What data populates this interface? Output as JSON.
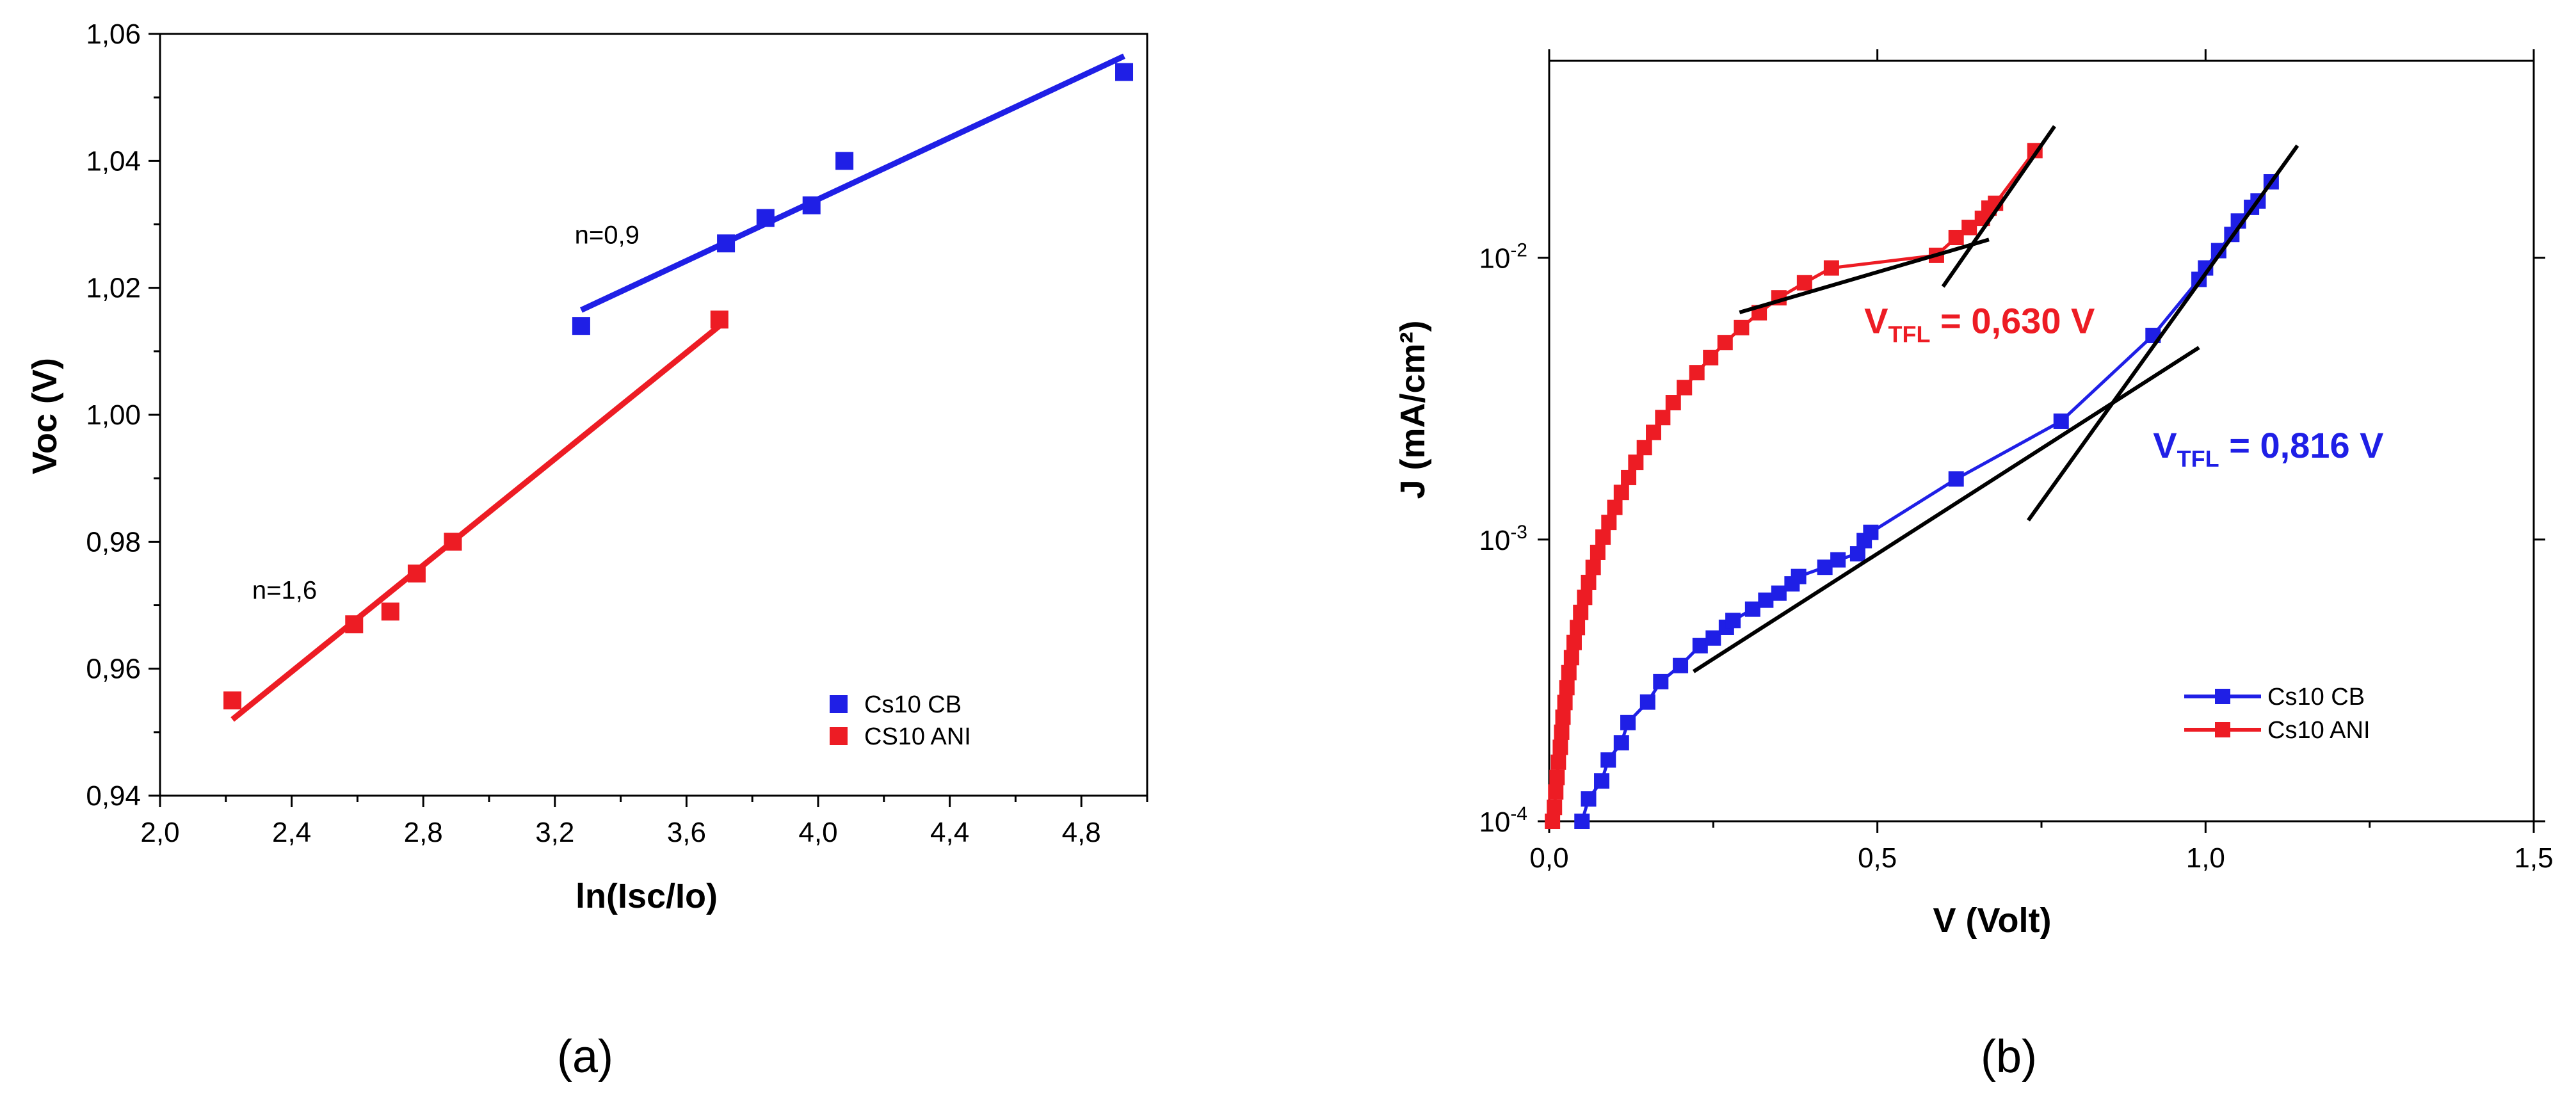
{
  "chart_data": [
    {
      "type": "scatter",
      "panel_label": "(a)",
      "xlabel": "ln(Isc/Io)",
      "ylabel": "Voc (V)",
      "xlim": [
        2.0,
        5.0
      ],
      "ylim": [
        0.94,
        1.06
      ],
      "xticks": [
        2.0,
        2.4,
        2.8,
        3.2,
        3.6,
        4.0,
        4.4,
        4.8
      ],
      "xtick_labels": [
        "2,0",
        "2,4",
        "2,8",
        "3,2",
        "3,6",
        "4,0",
        "4,4",
        "4,8"
      ],
      "yticks": [
        0.94,
        0.96,
        0.98,
        1.0,
        1.02,
        1.04,
        1.06
      ],
      "ytick_labels": [
        "0,94",
        "0,96",
        "0,98",
        "1,00",
        "1,02",
        "1,04",
        "1,06"
      ],
      "legend_placement": "bottom-right",
      "series": [
        {
          "name": "Cs10 CB",
          "color": "#1f1fe6",
          "x": [
            3.28,
            3.72,
            3.84,
            3.98,
            4.08,
            4.93
          ],
          "y": [
            1.014,
            1.027,
            1.031,
            1.033,
            1.04,
            1.054
          ],
          "fit": {
            "x": [
              3.28,
              4.93
            ],
            "y": [
              1.0165,
              1.0565
            ]
          }
        },
        {
          "name": " CS10 ANI",
          "color": "#ed1c24",
          "x": [
            2.22,
            2.59,
            2.7,
            2.78,
            2.89,
            3.7
          ],
          "y": [
            0.955,
            0.967,
            0.969,
            0.975,
            0.98,
            1.015
          ],
          "fit": {
            "x": [
              2.22,
              3.7
            ],
            "y": [
              0.952,
              1.014
            ]
          }
        }
      ],
      "annotations": [
        {
          "text": "n=0,9",
          "x": 3.26,
          "y": 1.027
        },
        {
          "text": "n=1,6",
          "x": 2.28,
          "y": 0.971
        }
      ]
    },
    {
      "type": "line",
      "panel_label": "(b)",
      "xlabel": "V (Volt)",
      "ylabel": "J (mA/cm²)",
      "yscale": "log",
      "xlim": [
        0.0,
        1.5
      ],
      "ylim": [
        0.0001,
        0.05
      ],
      "xticks": [
        0.0,
        0.5,
        1.0,
        1.5
      ],
      "xtick_labels": [
        "0,0",
        "0,5",
        "1,0",
        "1,5"
      ],
      "yticks": [
        0.0001,
        0.001,
        0.01
      ],
      "ytick_labels": [
        {
          "base": "10",
          "exp": "-4"
        },
        {
          "base": "10",
          "exp": "-3"
        },
        {
          "base": "10",
          "exp": "-2"
        }
      ],
      "legend_placement": "bottom-right",
      "series": [
        {
          "name": "Cs10 CB",
          "color": "#1f1fe6",
          "x": [
            0.05,
            0.06,
            0.08,
            0.09,
            0.11,
            0.12,
            0.15,
            0.17,
            0.2,
            0.23,
            0.25,
            0.27,
            0.28,
            0.31,
            0.33,
            0.35,
            0.37,
            0.38,
            0.42,
            0.44,
            0.47,
            0.48,
            0.49,
            0.62,
            0.78,
            0.92,
            0.99,
            1.0,
            1.02,
            1.04,
            1.05,
            1.07,
            1.08,
            1.1
          ],
          "y": [
            0.0001,
            0.00012,
            0.000139,
            0.000165,
            0.00019,
            0.000224,
            0.000265,
            0.000313,
            0.000357,
            0.00042,
            0.000447,
            0.000488,
            0.000516,
            0.000566,
            0.000609,
            0.000645,
            0.000696,
            0.000739,
            0.000797,
            0.000847,
            0.00089,
            0.000991,
            0.00106,
            0.00164,
            0.00263,
            0.0053,
            0.00838,
            0.0092,
            0.0106,
            0.0121,
            0.0135,
            0.0151,
            0.0159,
            0.0186
          ]
        },
        {
          "name": "Cs10 ANI",
          "color": "#ed1c24",
          "x": [
            0.005,
            0.008,
            0.01,
            0.012,
            0.014,
            0.017,
            0.019,
            0.021,
            0.024,
            0.027,
            0.03,
            0.034,
            0.038,
            0.043,
            0.048,
            0.054,
            0.06,
            0.067,
            0.074,
            0.082,
            0.091,
            0.1,
            0.11,
            0.121,
            0.132,
            0.145,
            0.159,
            0.173,
            0.189,
            0.206,
            0.225,
            0.246,
            0.268,
            0.293,
            0.32,
            0.35,
            0.389,
            0.43,
            0.59,
            0.62,
            0.64,
            0.66,
            0.67,
            0.68,
            0.74
          ],
          "y": [
            0.0001,
            0.000112,
            0.000127,
            0.000143,
            0.000162,
            0.000183,
            0.000207,
            0.000234,
            0.000264,
            0.000298,
            0.000337,
            0.000381,
            0.000431,
            0.000487,
            0.000551,
            0.000623,
            0.000704,
            0.000796,
            0.0009,
            0.00102,
            0.00115,
            0.0013,
            0.00147,
            0.00166,
            0.00188,
            0.00212,
            0.0024,
            0.00271,
            0.00306,
            0.00346,
            0.00391,
            0.00442,
            0.005,
            0.00565,
            0.00638,
            0.00721,
            0.00815,
            0.0092,
            0.0102,
            0.0118,
            0.0128,
            0.0138,
            0.015,
            0.0156,
            0.024
          ]
        }
      ],
      "tangent_lines": [
        {
          "x": [
            0.29,
            0.67
          ],
          "y": [
            0.0064,
            0.0116
          ]
        },
        {
          "x": [
            0.6,
            0.77
          ],
          "y": [
            0.0079,
            0.0293
          ]
        },
        {
          "x": [
            0.22,
            0.99
          ],
          "y": [
            0.00034,
            0.0048
          ]
        },
        {
          "x": [
            0.73,
            1.14
          ],
          "y": [
            0.00117,
            0.025
          ]
        }
      ],
      "annotations": [
        {
          "label": "V",
          "sub": "TFL",
          "value": " = 0,630 V",
          "color": "#ed1c24",
          "x": 0.48,
          "y": 0.0054
        },
        {
          "label": "V",
          "sub": "TFL",
          "value": " = 0,816 V",
          "color": "#1f1fe6",
          "x": 0.92,
          "y": 0.00195
        }
      ]
    }
  ]
}
